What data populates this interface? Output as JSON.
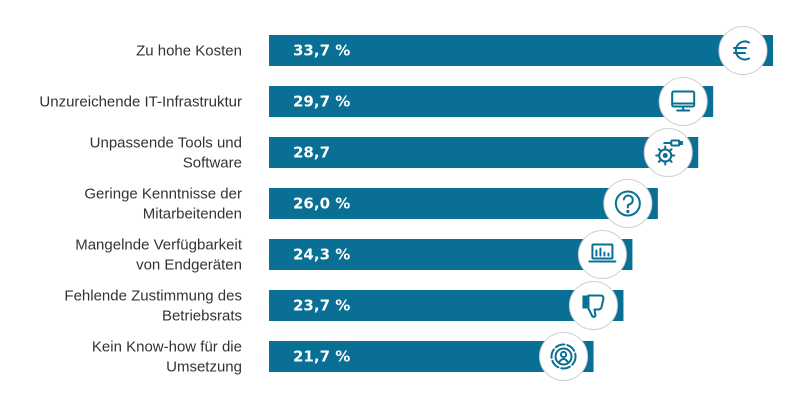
{
  "chart_data": {
    "type": "bar",
    "orientation": "horizontal",
    "xlim": [
      0,
      33.7
    ],
    "categories": [
      [
        "Zu hohe Kosten"
      ],
      [
        "Unzureichende IT-Infrastruktur"
      ],
      [
        "Unpassende Tools und",
        "Software"
      ],
      [
        "Geringe Kenntnisse der",
        "Mitarbeitenden"
      ],
      [
        "Mangelnde Verfügbarkeit",
        "von Endgeräten"
      ],
      [
        "Fehlende Zustimmung des",
        "Betriebsrats"
      ],
      [
        "Kein Know-how für die",
        "Umsetzung"
      ]
    ],
    "values": [
      33.7,
      29.7,
      28.7,
      26.0,
      24.3,
      23.7,
      21.7
    ],
    "value_labels": [
      "33,7 %",
      "29,7 %",
      "28,7",
      "26,0 %",
      "24,3 %",
      "23,7 %",
      "21,7 %"
    ],
    "icons": [
      "euro-icon",
      "monitor-icon",
      "gear-plug-icon",
      "question-icon",
      "laptop-chart-icon",
      "thumbs-down-icon",
      "target-person-icon"
    ],
    "bar_color": "#0a6f95",
    "icon_color": "#0a6f95",
    "grid": false,
    "legend": "none"
  }
}
